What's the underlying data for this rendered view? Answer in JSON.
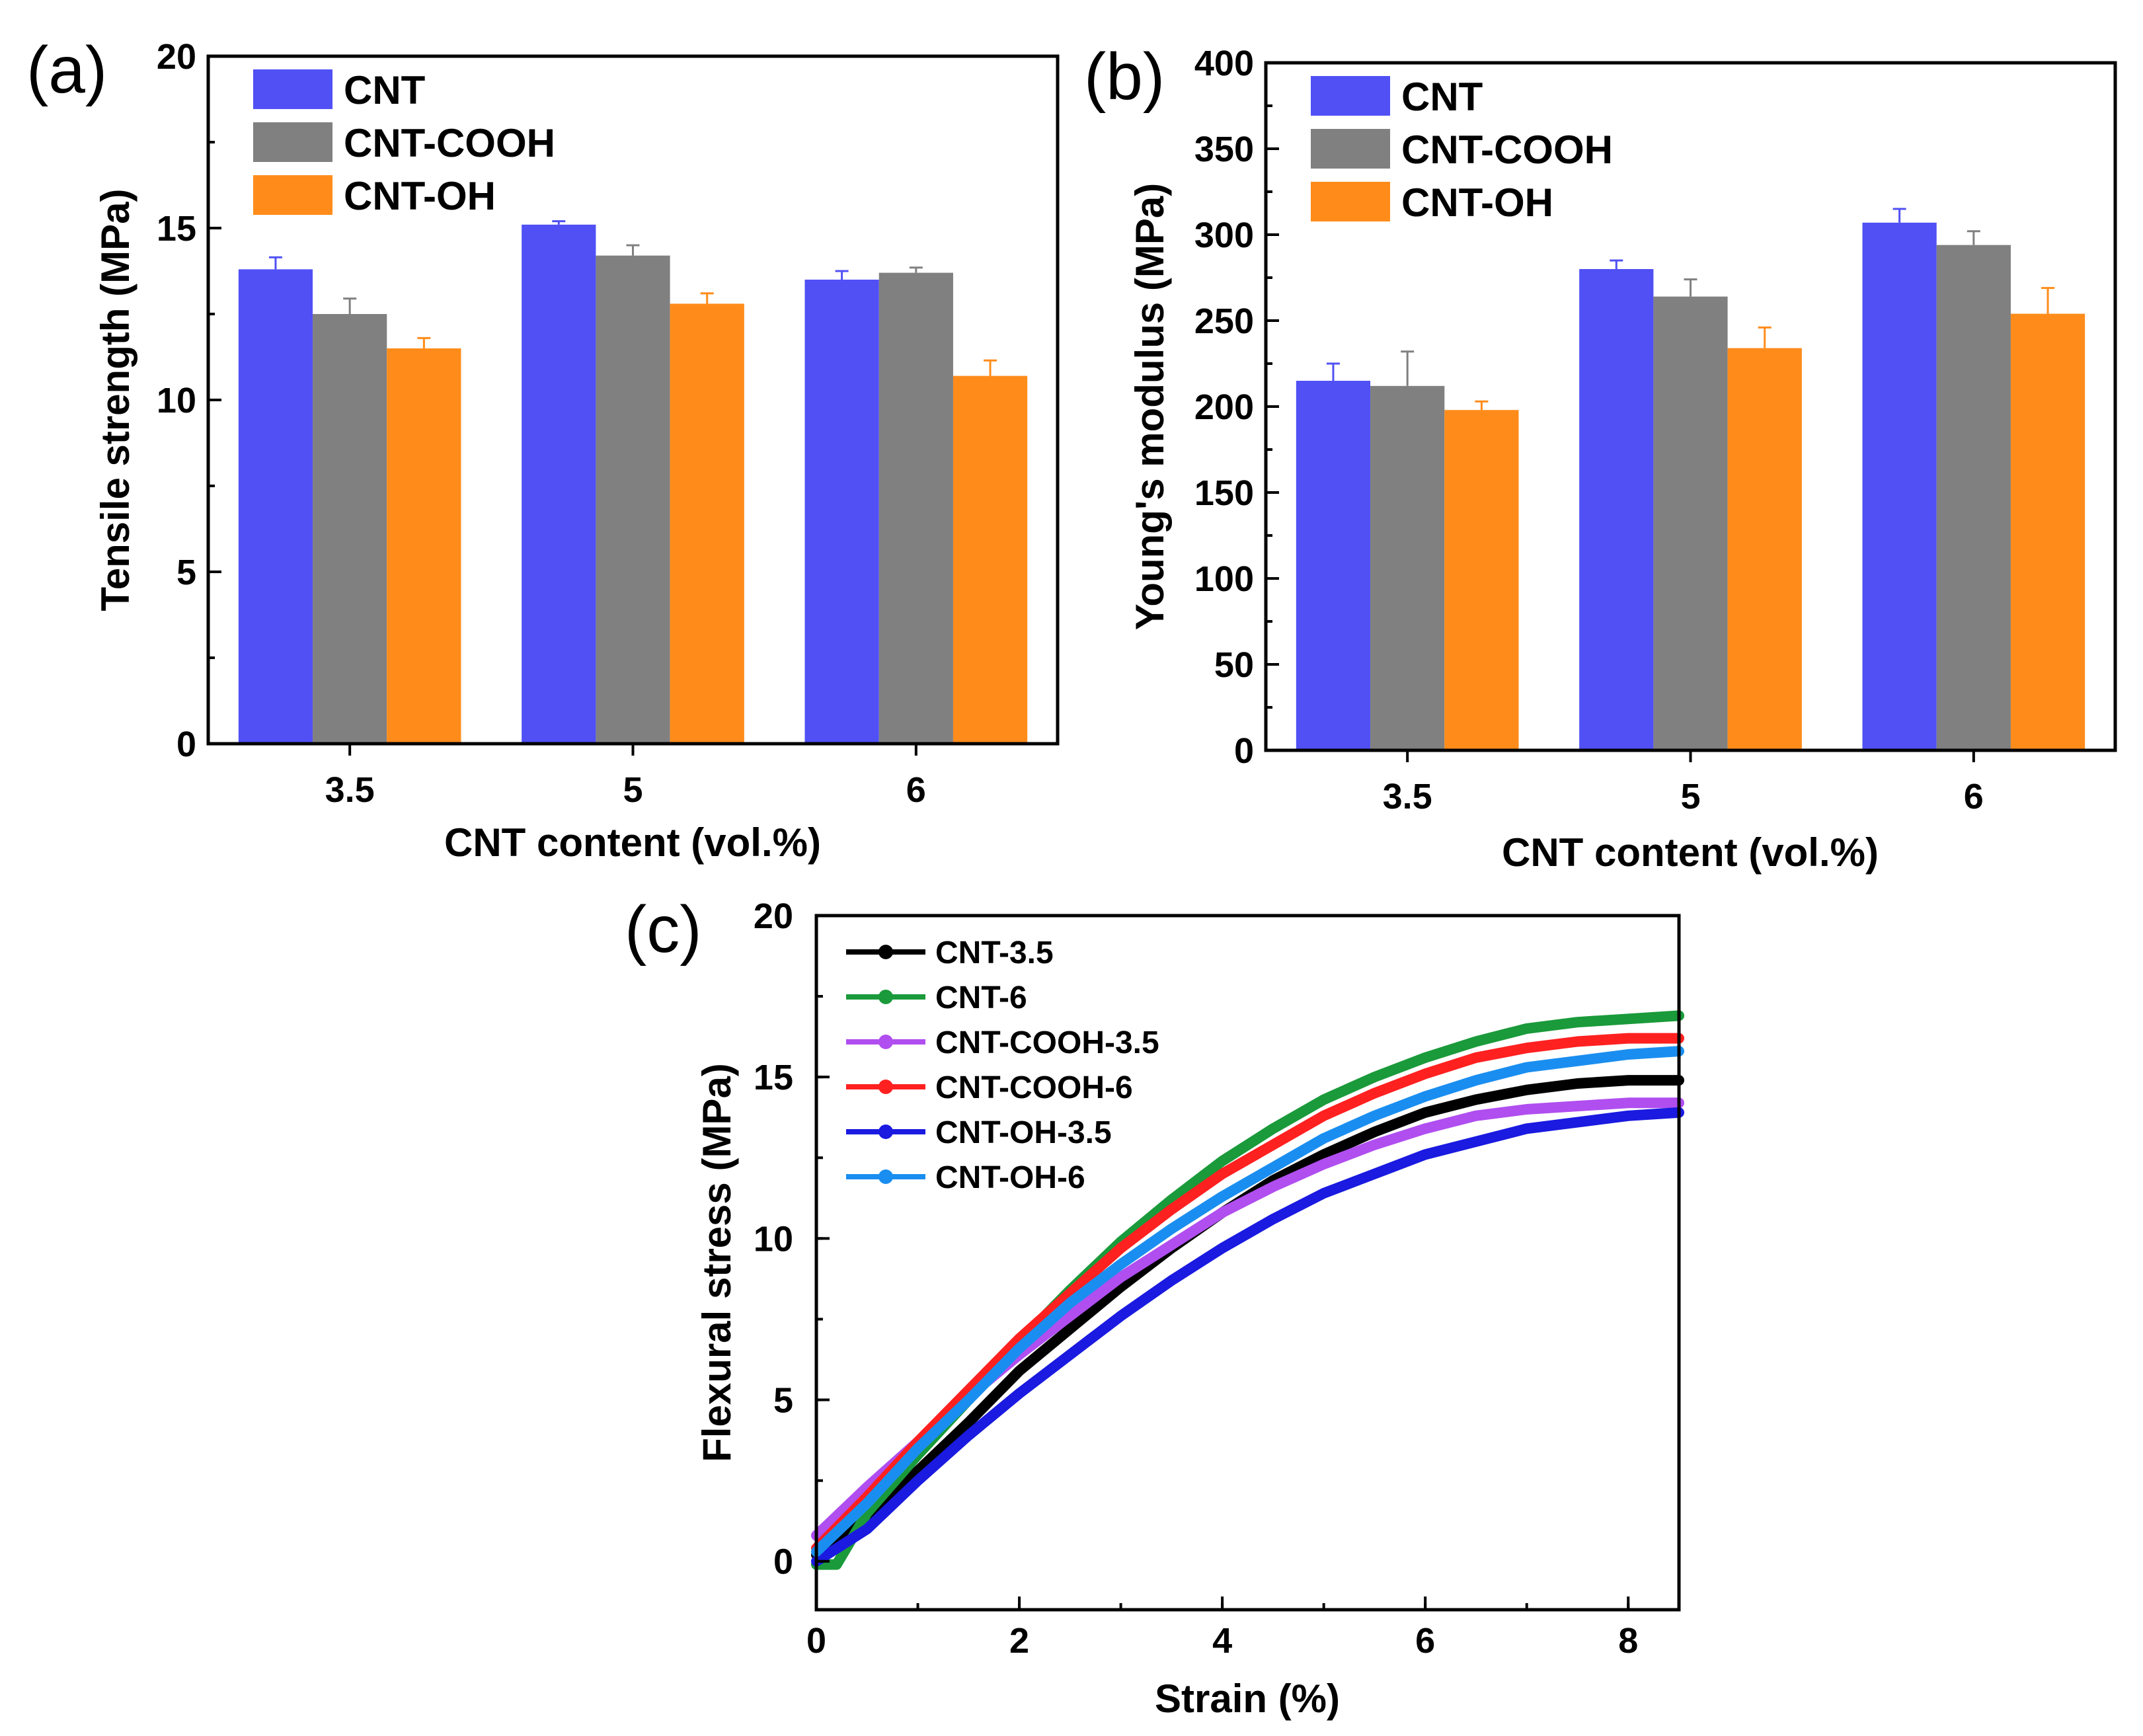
{
  "chart_data": [
    {
      "type": "bar",
      "panel_label": "(a)",
      "title": "",
      "xlabel": "CNT content (vol.%)",
      "ylabel": "Tensile strength (MPa)",
      "categories": [
        "3.5",
        "5",
        "6"
      ],
      "ylim": [
        0,
        20
      ],
      "yticks": [
        "0",
        "5",
        "10",
        "15",
        "20"
      ],
      "legend_position": "top-left",
      "series": [
        {
          "name": "CNT",
          "color": "#5050f5",
          "values": [
            13.8,
            15.1,
            13.5
          ],
          "errors": [
            0.35,
            0.1,
            0.25
          ]
        },
        {
          "name": "CNT-COOH",
          "color": "#808080",
          "values": [
            12.5,
            14.2,
            13.7
          ],
          "errors": [
            0.45,
            0.3,
            0.15
          ]
        },
        {
          "name": "CNT-OH",
          "color": "#ff8c1a",
          "values": [
            11.5,
            12.8,
            10.7
          ],
          "errors": [
            0.3,
            0.3,
            0.45
          ]
        }
      ]
    },
    {
      "type": "bar",
      "panel_label": "(b)",
      "title": "",
      "xlabel": "CNT content (vol.%)",
      "ylabel": "Young's modulus (MPa)",
      "categories": [
        "3.5",
        "5",
        "6"
      ],
      "ylim": [
        0,
        400
      ],
      "yticks": [
        "0",
        "50",
        "100",
        "150",
        "200",
        "250",
        "300",
        "350",
        "400"
      ],
      "legend_position": "top-left",
      "series": [
        {
          "name": "CNT",
          "color": "#5050f5",
          "values": [
            215,
            280,
            307
          ],
          "errors": [
            10,
            5,
            8
          ]
        },
        {
          "name": "CNT-COOH",
          "color": "#808080",
          "values": [
            212,
            264,
            294
          ],
          "errors": [
            20,
            10,
            8
          ]
        },
        {
          "name": "CNT-OH",
          "color": "#ff8c1a",
          "values": [
            198,
            234,
            254
          ],
          "errors": [
            5,
            12,
            15
          ]
        }
      ]
    },
    {
      "type": "line",
      "panel_label": "(c)",
      "title": "",
      "xlabel": "Strain (%)",
      "ylabel": "Flexural stress (MPa)",
      "xlim": [
        0,
        8.5
      ],
      "ylim": [
        -1.5,
        20
      ],
      "xticks": [
        "0",
        "2",
        "4",
        "6",
        "8"
      ],
      "yticks": [
        "0",
        "5",
        "10",
        "15",
        "20"
      ],
      "legend_position": "top-left",
      "series": [
        {
          "name": "CNT-3.5",
          "color": "#000000",
          "x": [
            0,
            0.5,
            1,
            1.5,
            2,
            2.5,
            3,
            3.5,
            4,
            4.5,
            5,
            5.5,
            6,
            6.5,
            7,
            7.5,
            8,
            8.5
          ],
          "y": [
            0.2,
            1.3,
            2.8,
            4.3,
            5.9,
            7.2,
            8.5,
            9.7,
            10.8,
            11.8,
            12.6,
            13.3,
            13.9,
            14.3,
            14.6,
            14.8,
            14.9,
            14.9
          ]
        },
        {
          "name": "CNT-6",
          "color": "#1a9a3a",
          "x": [
            0,
            0.2,
            0.5,
            1,
            1.5,
            2,
            2.5,
            3,
            3.5,
            4,
            4.5,
            5,
            5.5,
            6,
            6.5,
            7,
            7.5,
            8,
            8.5
          ],
          "y": [
            -0.1,
            -0.1,
            1.5,
            3.3,
            5.0,
            6.8,
            8.4,
            9.9,
            11.2,
            12.4,
            13.4,
            14.3,
            15.0,
            15.6,
            16.1,
            16.5,
            16.7,
            16.8,
            16.9
          ]
        },
        {
          "name": "CNT-COOH-3.5",
          "color": "#b04ef0",
          "x": [
            0,
            0.5,
            1,
            1.5,
            2,
            2.5,
            3,
            3.5,
            4,
            4.5,
            5,
            5.5,
            6,
            6.5,
            7,
            7.5,
            8,
            8.5
          ],
          "y": [
            0.8,
            2.3,
            3.7,
            5.1,
            6.4,
            7.6,
            8.8,
            9.8,
            10.8,
            11.6,
            12.3,
            12.9,
            13.4,
            13.8,
            14.0,
            14.1,
            14.2,
            14.2
          ]
        },
        {
          "name": "CNT-COOH-6",
          "color": "#ff2020",
          "x": [
            0,
            0.5,
            1,
            1.5,
            2,
            2.5,
            3,
            3.5,
            4,
            4.5,
            5,
            5.5,
            6,
            6.5,
            7,
            7.5,
            8,
            8.5
          ],
          "y": [
            0.4,
            2.0,
            3.7,
            5.3,
            6.9,
            8.3,
            9.7,
            10.9,
            12.0,
            12.9,
            13.8,
            14.5,
            15.1,
            15.6,
            15.9,
            16.1,
            16.2,
            16.2
          ]
        },
        {
          "name": "CNT-OH-3.5",
          "color": "#1a1ae0",
          "x": [
            0,
            0.5,
            1,
            1.5,
            2,
            2.5,
            3,
            3.5,
            4,
            4.5,
            5,
            5.5,
            6,
            6.5,
            7,
            7.5,
            8,
            8.5
          ],
          "y": [
            0.0,
            1.0,
            2.5,
            3.9,
            5.2,
            6.4,
            7.6,
            8.7,
            9.7,
            10.6,
            11.4,
            12.0,
            12.6,
            13.0,
            13.4,
            13.6,
            13.8,
            13.9
          ]
        },
        {
          "name": "CNT-OH-6",
          "color": "#1a8ef0",
          "x": [
            0,
            0.5,
            1,
            1.5,
            2,
            2.5,
            3,
            3.5,
            4,
            4.5,
            5,
            5.5,
            6,
            6.5,
            7,
            7.5,
            8,
            8.5
          ],
          "y": [
            0.3,
            1.8,
            3.5,
            5.0,
            6.6,
            8.0,
            9.2,
            10.3,
            11.3,
            12.2,
            13.1,
            13.8,
            14.4,
            14.9,
            15.3,
            15.5,
            15.7,
            15.8
          ]
        }
      ]
    }
  ]
}
